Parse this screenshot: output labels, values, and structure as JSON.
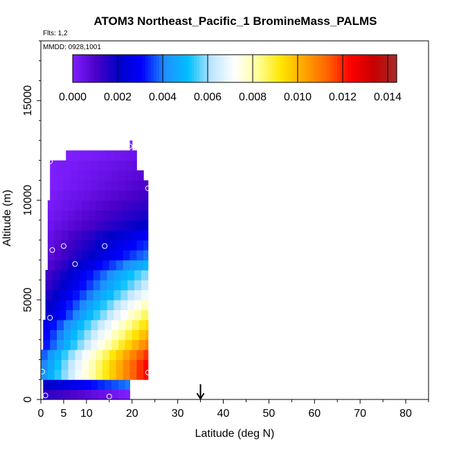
{
  "chart_data": {
    "type": "heatmap",
    "title": "ATOM3 Northeast_Pacific_1 BromineMass_PALMS",
    "flights_label": "Flts: 1,2",
    "dates_label": "MMDD: 0928,1001",
    "xlabel": "Latitude (deg N)",
    "ylabel": "Altitude (m)",
    "xlim": [
      0,
      85
    ],
    "ylim": [
      0,
      18000
    ],
    "x_ticks": [
      0,
      5,
      10,
      20,
      30,
      40,
      50,
      60,
      70,
      80
    ],
    "y_ticks": [
      0,
      5000,
      10000,
      15000
    ],
    "colorbar": {
      "min": 0.0,
      "max": 0.0144,
      "ticks": [
        "0.000",
        "0.002",
        "0.004",
        "0.006",
        "0.008",
        "0.010",
        "0.012",
        "0.014"
      ],
      "colors": [
        "#7f1fff",
        "#4b00c8",
        "#0000c8",
        "#0000ff",
        "#1e90ff",
        "#00bfff",
        "#bfe6ff",
        "#ffffff",
        "#ffff99",
        "#ffe600",
        "#ffa500",
        "#ff6400",
        "#ff0000",
        "#c80000",
        "#a52a2a"
      ]
    },
    "marker_latitude": 35,
    "altitude_bin_m": 500,
    "rows": [
      {
        "alt": 0,
        "lat_min": 0.5,
        "lat_max": 19.5,
        "value_low": 0.0015,
        "value_high": 0.0
      },
      {
        "alt": 500,
        "lat_min": 0.5,
        "lat_max": 19.5,
        "value_low": 0.002,
        "value_high": 0.004
      },
      {
        "alt": 1000,
        "lat_min": 0.0,
        "lat_max": 23.5,
        "value_low": 0.004,
        "value_high": 0.0125
      },
      {
        "alt": 1500,
        "lat_min": 0.0,
        "lat_max": 23.5,
        "value_low": 0.0038,
        "value_high": 0.0125
      },
      {
        "alt": 2000,
        "lat_min": 0.0,
        "lat_max": 23.5,
        "value_low": 0.0035,
        "value_high": 0.012
      },
      {
        "alt": 2500,
        "lat_min": 0.5,
        "lat_max": 23.5,
        "value_low": 0.003,
        "value_high": 0.011
      },
      {
        "alt": 3000,
        "lat_min": 0.5,
        "lat_max": 23.5,
        "value_low": 0.0028,
        "value_high": 0.0102
      },
      {
        "alt": 3500,
        "lat_min": 0.5,
        "lat_max": 23.5,
        "value_low": 0.0025,
        "value_high": 0.0095
      },
      {
        "alt": 4000,
        "lat_min": 1.0,
        "lat_max": 23.5,
        "value_low": 0.002,
        "value_high": 0.0088
      },
      {
        "alt": 4500,
        "lat_min": 1.0,
        "lat_max": 23.5,
        "value_low": 0.0018,
        "value_high": 0.008
      },
      {
        "alt": 5000,
        "lat_min": 1.0,
        "lat_max": 23.5,
        "value_low": 0.0015,
        "value_high": 0.0072
      },
      {
        "alt": 5500,
        "lat_min": 1.0,
        "lat_max": 23.5,
        "value_low": 0.0012,
        "value_high": 0.0065
      },
      {
        "alt": 6000,
        "lat_min": 1.0,
        "lat_max": 23.5,
        "value_low": 0.001,
        "value_high": 0.006
      },
      {
        "alt": 6500,
        "lat_min": 1.5,
        "lat_max": 23.5,
        "value_low": 0.0008,
        "value_high": 0.005
      },
      {
        "alt": 7000,
        "lat_min": 1.5,
        "lat_max": 23.5,
        "value_low": 0.0006,
        "value_high": 0.004
      },
      {
        "alt": 7500,
        "lat_min": 1.5,
        "lat_max": 23.5,
        "value_low": 0.0005,
        "value_high": 0.0035
      },
      {
        "alt": 8000,
        "lat_min": 1.5,
        "lat_max": 23.5,
        "value_low": 0.0004,
        "value_high": 0.003
      },
      {
        "alt": 8500,
        "lat_min": 1.5,
        "lat_max": 23.5,
        "value_low": 0.0003,
        "value_high": 0.0022
      },
      {
        "alt": 9000,
        "lat_min": 1.5,
        "lat_max": 23.5,
        "value_low": 0.0002,
        "value_high": 0.0018
      },
      {
        "alt": 9500,
        "lat_min": 1.5,
        "lat_max": 23.5,
        "value_low": 0.0001,
        "value_high": 0.0015
      },
      {
        "alt": 10000,
        "lat_min": 2.0,
        "lat_max": 23.5,
        "value_low": 0.0001,
        "value_high": 0.0012
      },
      {
        "alt": 10500,
        "lat_min": 2.0,
        "lat_max": 23.5,
        "value_low": 0.0,
        "value_high": 0.001
      },
      {
        "alt": 11000,
        "lat_min": 2.0,
        "lat_max": 22.5,
        "value_low": 0.0,
        "value_high": 0.0008
      },
      {
        "alt": 11500,
        "lat_min": 2.0,
        "lat_max": 21.0,
        "value_low": 0.0,
        "value_high": 0.0006
      },
      {
        "alt": 12000,
        "lat_min": 5.5,
        "lat_max": 21.0,
        "value_low": 0.0,
        "value_high": 0.0004
      },
      {
        "alt": 12500,
        "lat_min": 19.5,
        "lat_max": 20.0,
        "value_low": 0.0,
        "value_high": 0.0
      }
    ],
    "obs_points": [
      {
        "lat": 1.0,
        "alt": 200
      },
      {
        "lat": 15.0,
        "alt": 150
      },
      {
        "lat": 0.3,
        "alt": 1400
      },
      {
        "lat": 23.5,
        "alt": 1350
      },
      {
        "lat": 2.0,
        "alt": 4100
      },
      {
        "lat": 7.5,
        "alt": 6800
      },
      {
        "lat": 2.5,
        "alt": 7500
      },
      {
        "lat": 5.0,
        "alt": 7700
      },
      {
        "lat": 14.0,
        "alt": 7700
      },
      {
        "lat": 23.5,
        "alt": 10600
      },
      {
        "lat": 2.0,
        "alt": 11950
      },
      {
        "lat": 19.5,
        "alt": 12700
      }
    ]
  }
}
